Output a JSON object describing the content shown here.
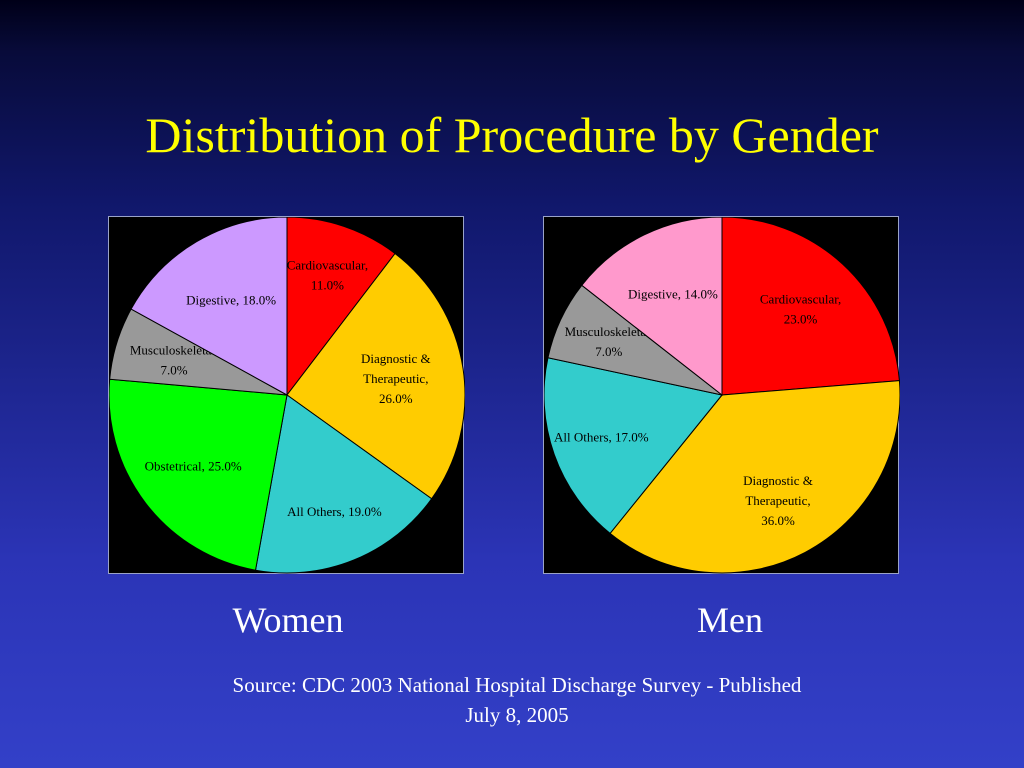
{
  "slide": {
    "title": "Distribution of Procedure by Gender",
    "source_line1": "Source:  CDC 2003 National Hospital Discharge Survey - Published",
    "source_line2": "July 8, 2005"
  },
  "chart_data": [
    {
      "type": "pie",
      "caption": "Women",
      "slices": [
        {
          "label_lines": [
            "Cardiovascular,",
            "11.0%"
          ],
          "value": 11.0,
          "color": "#ff0000"
        },
        {
          "label_lines": [
            "Diagnostic &",
            "Therapeutic,",
            "26.0%"
          ],
          "value": 26.0,
          "color": "#ffcc00"
        },
        {
          "label_lines": [
            "All Others, 19.0%"
          ],
          "value": 19.0,
          "color": "#33cccc"
        },
        {
          "label_lines": [
            "Obstetrical, 25.0%"
          ],
          "value": 25.0,
          "color": "#00ff00"
        },
        {
          "label_lines": [
            "Musculoskeletal,",
            "7.0%"
          ],
          "value": 7.0,
          "color": "#999999"
        },
        {
          "label_lines": [
            "Digestive, 18.0%"
          ],
          "value": 18.0,
          "color": "#cc99ff"
        }
      ]
    },
    {
      "type": "pie",
      "caption": "Men",
      "slices": [
        {
          "label_lines": [
            "Cardiovascular,",
            "23.0%"
          ],
          "value": 23.0,
          "color": "#ff0000"
        },
        {
          "label_lines": [
            "Diagnostic &",
            "Therapeutic,",
            "36.0%"
          ],
          "value": 36.0,
          "color": "#ffcc00"
        },
        {
          "label_lines": [
            "All Others, 17.0%"
          ],
          "value": 17.0,
          "color": "#33cccc"
        },
        {
          "label_lines": [
            "Musculoskeletal,",
            "7.0%"
          ],
          "value": 7.0,
          "color": "#999999"
        },
        {
          "label_lines": [
            "Digestive, 14.0%"
          ],
          "value": 14.0,
          "color": "#ff99cc"
        }
      ]
    }
  ]
}
